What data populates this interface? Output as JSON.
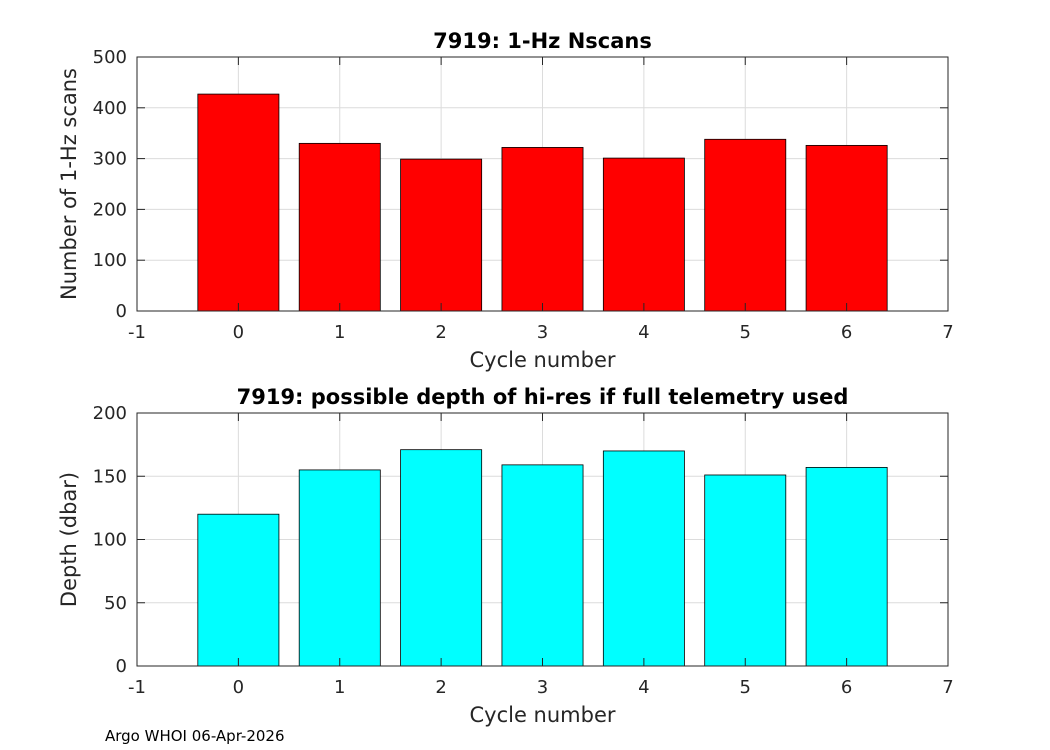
{
  "footer_text": "Argo WHOI 06-Apr-2026",
  "chart_data": [
    {
      "type": "bar",
      "title": "7919: 1-Hz Nscans",
      "xlabel": "Cycle number",
      "ylabel": "Number of 1-Hz scans",
      "x": [
        0,
        1,
        2,
        3,
        4,
        5,
        6
      ],
      "values": [
        427,
        330,
        299,
        322,
        301,
        338,
        326
      ],
      "xlim": [
        -1,
        7
      ],
      "ylim": [
        0,
        500
      ],
      "xticks": [
        -1,
        0,
        1,
        2,
        3,
        4,
        5,
        6,
        7
      ],
      "yticks": [
        0,
        100,
        200,
        300,
        400,
        500
      ],
      "bar_color": "#ff0000",
      "grid": true
    },
    {
      "type": "bar",
      "title": "7919: possible depth of hi-res if full telemetry used",
      "xlabel": "Cycle number",
      "ylabel": "Depth (dbar)",
      "x": [
        0,
        1,
        2,
        3,
        4,
        5,
        6
      ],
      "values": [
        120,
        155,
        171,
        159,
        170,
        151,
        157
      ],
      "xlim": [
        -1,
        7
      ],
      "ylim": [
        0,
        200
      ],
      "xticks": [
        -1,
        0,
        1,
        2,
        3,
        4,
        5,
        6,
        7
      ],
      "yticks": [
        0,
        50,
        100,
        150,
        200
      ],
      "bar_color": "#00ffff",
      "grid": true
    }
  ]
}
